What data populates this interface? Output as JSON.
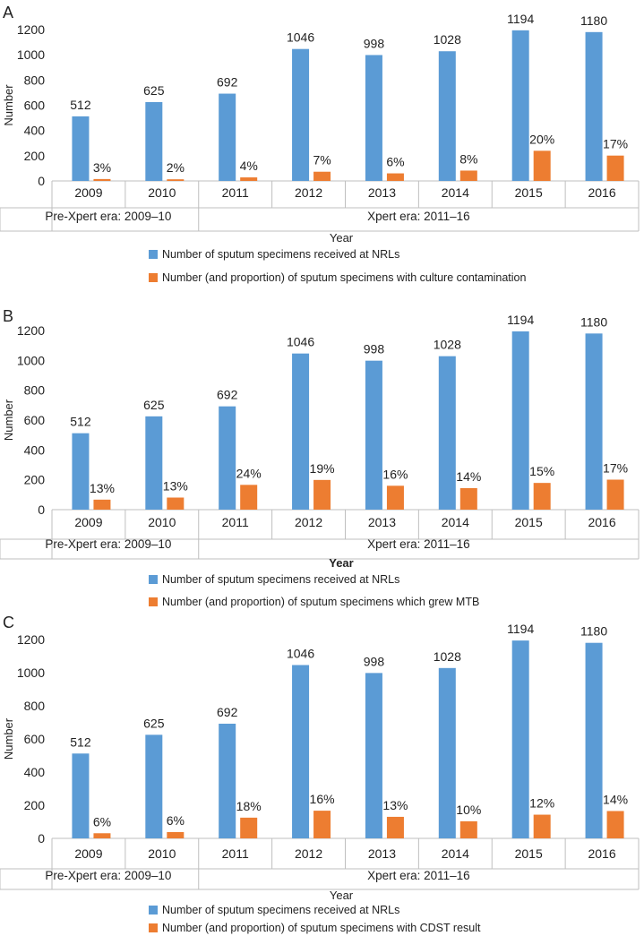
{
  "colors": {
    "received": "#5b9bd5",
    "subset": "#ed7d31",
    "axis": "#bfbfbf",
    "text": "#222222"
  },
  "chart_data": [
    {
      "panel": "A",
      "type": "bar",
      "categories": [
        "2009",
        "2010",
        "2011",
        "2012",
        "2013",
        "2014",
        "2015",
        "2016"
      ],
      "groups": [
        {
          "label": "Pre-Xpert era: 2009–10",
          "categories": [
            "2009",
            "2010"
          ]
        },
        {
          "label": "Xpert era: 2011–16",
          "categories": [
            "2011",
            "2012",
            "2013",
            "2014",
            "2015",
            "2016"
          ]
        }
      ],
      "series": [
        {
          "name": "Number of sputum specimens received at NRLs",
          "values": [
            512,
            625,
            692,
            1046,
            998,
            1028,
            1194,
            1180
          ],
          "labels": [
            "512",
            "625",
            "692",
            "1046",
            "998",
            "1028",
            "1194",
            "1180"
          ]
        },
        {
          "name": "Number (and proportion) of sputum specimens with culture contamination",
          "values": [
            15,
            13,
            28,
            73,
            60,
            82,
            239,
            201
          ],
          "labels": [
            "3%",
            "2%",
            "4%",
            "7%",
            "6%",
            "8%",
            "20%",
            "17%"
          ]
        }
      ],
      "ylabel": "Number",
      "xlabel": "Year",
      "xlabel_bold": false,
      "ylim": [
        0,
        1200
      ],
      "yticks": [
        0,
        200,
        400,
        600,
        800,
        1000,
        1200
      ]
    },
    {
      "panel": "B",
      "type": "bar",
      "categories": [
        "2009",
        "2010",
        "2011",
        "2012",
        "2013",
        "2014",
        "2015",
        "2016"
      ],
      "groups": [
        {
          "label": "Pre-Xpert era: 2009–10",
          "categories": [
            "2009",
            "2010"
          ]
        },
        {
          "label": "Xpert era: 2011–16",
          "categories": [
            "2011",
            "2012",
            "2013",
            "2014",
            "2015",
            "2016"
          ]
        }
      ],
      "series": [
        {
          "name": "Number of sputum specimens received at NRLs",
          "values": [
            512,
            625,
            692,
            1046,
            998,
            1028,
            1194,
            1180
          ],
          "labels": [
            "512",
            "625",
            "692",
            "1046",
            "998",
            "1028",
            "1194",
            "1180"
          ]
        },
        {
          "name": "Number (and proportion) of sputum specimens which grew MTB",
          "values": [
            67,
            81,
            166,
            199,
            160,
            144,
            179,
            201
          ],
          "labels": [
            "13%",
            "13%",
            "24%",
            "19%",
            "16%",
            "14%",
            "15%",
            "17%"
          ]
        }
      ],
      "ylabel": "Number",
      "xlabel": "Year",
      "xlabel_bold": true,
      "ylim": [
        0,
        1200
      ],
      "yticks": [
        0,
        200,
        400,
        600,
        800,
        1000,
        1200
      ]
    },
    {
      "panel": "C",
      "type": "bar",
      "categories": [
        "2009",
        "2010",
        "2011",
        "2012",
        "2013",
        "2014",
        "2015",
        "2016"
      ],
      "groups": [
        {
          "label": "Pre-Xpert era: 2009–10",
          "categories": [
            "2009",
            "2010"
          ]
        },
        {
          "label": "Xpert era: 2011–16",
          "categories": [
            "2011",
            "2012",
            "2013",
            "2014",
            "2015",
            "2016"
          ]
        }
      ],
      "series": [
        {
          "name": "Number of sputum specimens received at NRLs",
          "values": [
            512,
            625,
            692,
            1046,
            998,
            1028,
            1194,
            1180
          ],
          "labels": [
            "512",
            "625",
            "692",
            "1046",
            "998",
            "1028",
            "1194",
            "1180"
          ]
        },
        {
          "name": "Number (and proportion) of sputum specimens with CDST result",
          "values": [
            31,
            38,
            125,
            167,
            130,
            103,
            143,
            165
          ],
          "labels": [
            "6%",
            "6%",
            "18%",
            "16%",
            "13%",
            "10%",
            "12%",
            "14%"
          ]
        }
      ],
      "ylabel": "Number",
      "xlabel": "Year",
      "xlabel_bold": false,
      "ylim": [
        0,
        1200
      ],
      "yticks": [
        0,
        200,
        400,
        600,
        800,
        1000,
        1200
      ]
    }
  ]
}
